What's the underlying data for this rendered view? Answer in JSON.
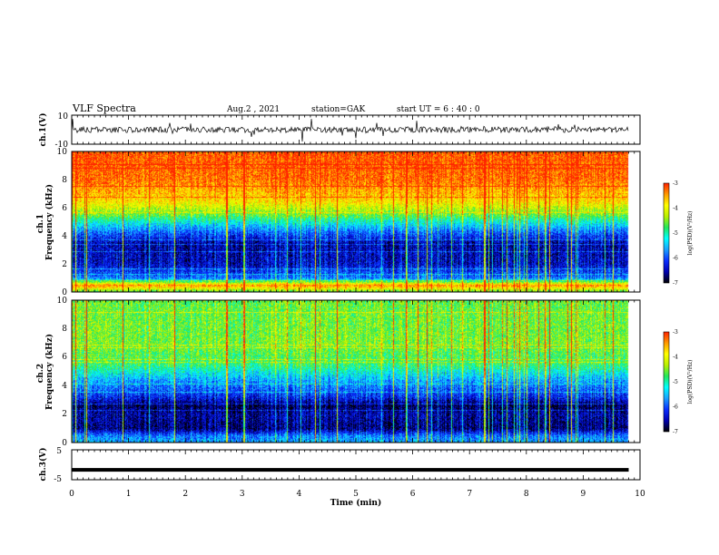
{
  "header": {
    "title": "VLF Spectra",
    "date": "Aug.2 , 2021",
    "station": "station=GAK",
    "start": "start UT = 6 : 40 : 0"
  },
  "colors": {
    "palette": [
      "#000000",
      "#0000b0",
      "#0a2eff",
      "#1a9fff",
      "#00ffff",
      "#22e85a",
      "#b8f000",
      "#ffff00",
      "#ff9900",
      "#ff2200"
    ]
  },
  "chart_data": [
    {
      "type": "line",
      "panel": "ch1-waveform",
      "ylabel": "ch.1(V)",
      "ylim": [
        -10,
        10
      ],
      "ytick_labels": [
        "10",
        "-10"
      ],
      "xlim": [
        0,
        10
      ],
      "baseline_value": 0,
      "description_of_trace": "noisy waveform around 0 V, full duration 0-9.8 min",
      "duration_min": 9.8
    },
    {
      "type": "heatmap",
      "panel": "ch1-spectrogram",
      "ylabel": "ch.1\nFrequency (kHz)",
      "ylim": [
        0,
        10
      ],
      "ytick_labels": [
        "0",
        "2",
        "4",
        "6",
        "8",
        "10"
      ],
      "xlim": [
        0,
        10
      ],
      "colorbar": {
        "label": "log(PSD)(V²/Hz)",
        "range": [
          -7,
          -3
        ],
        "tick_labels": [
          "-3",
          "-4",
          "-5",
          "-6",
          "-7"
        ]
      },
      "level_profile": [
        {
          "f": 0.0,
          "v": 0.55
        },
        {
          "f": 0.5,
          "v": 0.9
        },
        {
          "f": 1.0,
          "v": 0.3
        },
        {
          "f": 2.0,
          "v": 0.15
        },
        {
          "f": 3.5,
          "v": 0.12
        },
        {
          "f": 4.6,
          "v": 0.35
        },
        {
          "f": 5.5,
          "v": 0.6
        },
        {
          "f": 6.5,
          "v": 0.8
        },
        {
          "f": 8.0,
          "v": 0.93
        },
        {
          "f": 10.0,
          "v": 0.96
        }
      ]
    },
    {
      "type": "heatmap",
      "panel": "ch2-spectrogram",
      "ylabel": "ch.2\nFrequency (kHz)",
      "ylim": [
        0,
        10
      ],
      "ytick_labels": [
        "0",
        "2",
        "4",
        "6",
        "8",
        "10"
      ],
      "xlim": [
        0,
        10
      ],
      "colorbar": {
        "label": "log(PSD)(V²/Hz)",
        "range": [
          -7,
          -3
        ],
        "tick_labels": [
          "-3",
          "-4",
          "-5",
          "-6",
          "-7"
        ]
      },
      "level_profile": [
        {
          "f": 0.0,
          "v": 0.35
        },
        {
          "f": 0.5,
          "v": 0.3
        },
        {
          "f": 1.0,
          "v": 0.08
        },
        {
          "f": 2.0,
          "v": 0.12
        },
        {
          "f": 2.6,
          "v": 0.05
        },
        {
          "f": 3.2,
          "v": 0.2
        },
        {
          "f": 4.4,
          "v": 0.35
        },
        {
          "f": 5.5,
          "v": 0.55
        },
        {
          "f": 7.0,
          "v": 0.62
        },
        {
          "f": 10.0,
          "v": 0.6
        }
      ]
    },
    {
      "type": "line",
      "panel": "ch3-waveform",
      "ylabel": "ch.3(V)",
      "ylim": [
        -5,
        5
      ],
      "ytick_labels": [
        "5",
        "-5"
      ],
      "xlim": [
        0,
        10
      ],
      "xlabel": "Time (min)",
      "xtick_labels": [
        "0",
        "1",
        "2",
        "3",
        "4",
        "5",
        "6",
        "7",
        "8",
        "9",
        "10"
      ],
      "trace_value": -1.7,
      "duration_min": 9.8
    }
  ]
}
